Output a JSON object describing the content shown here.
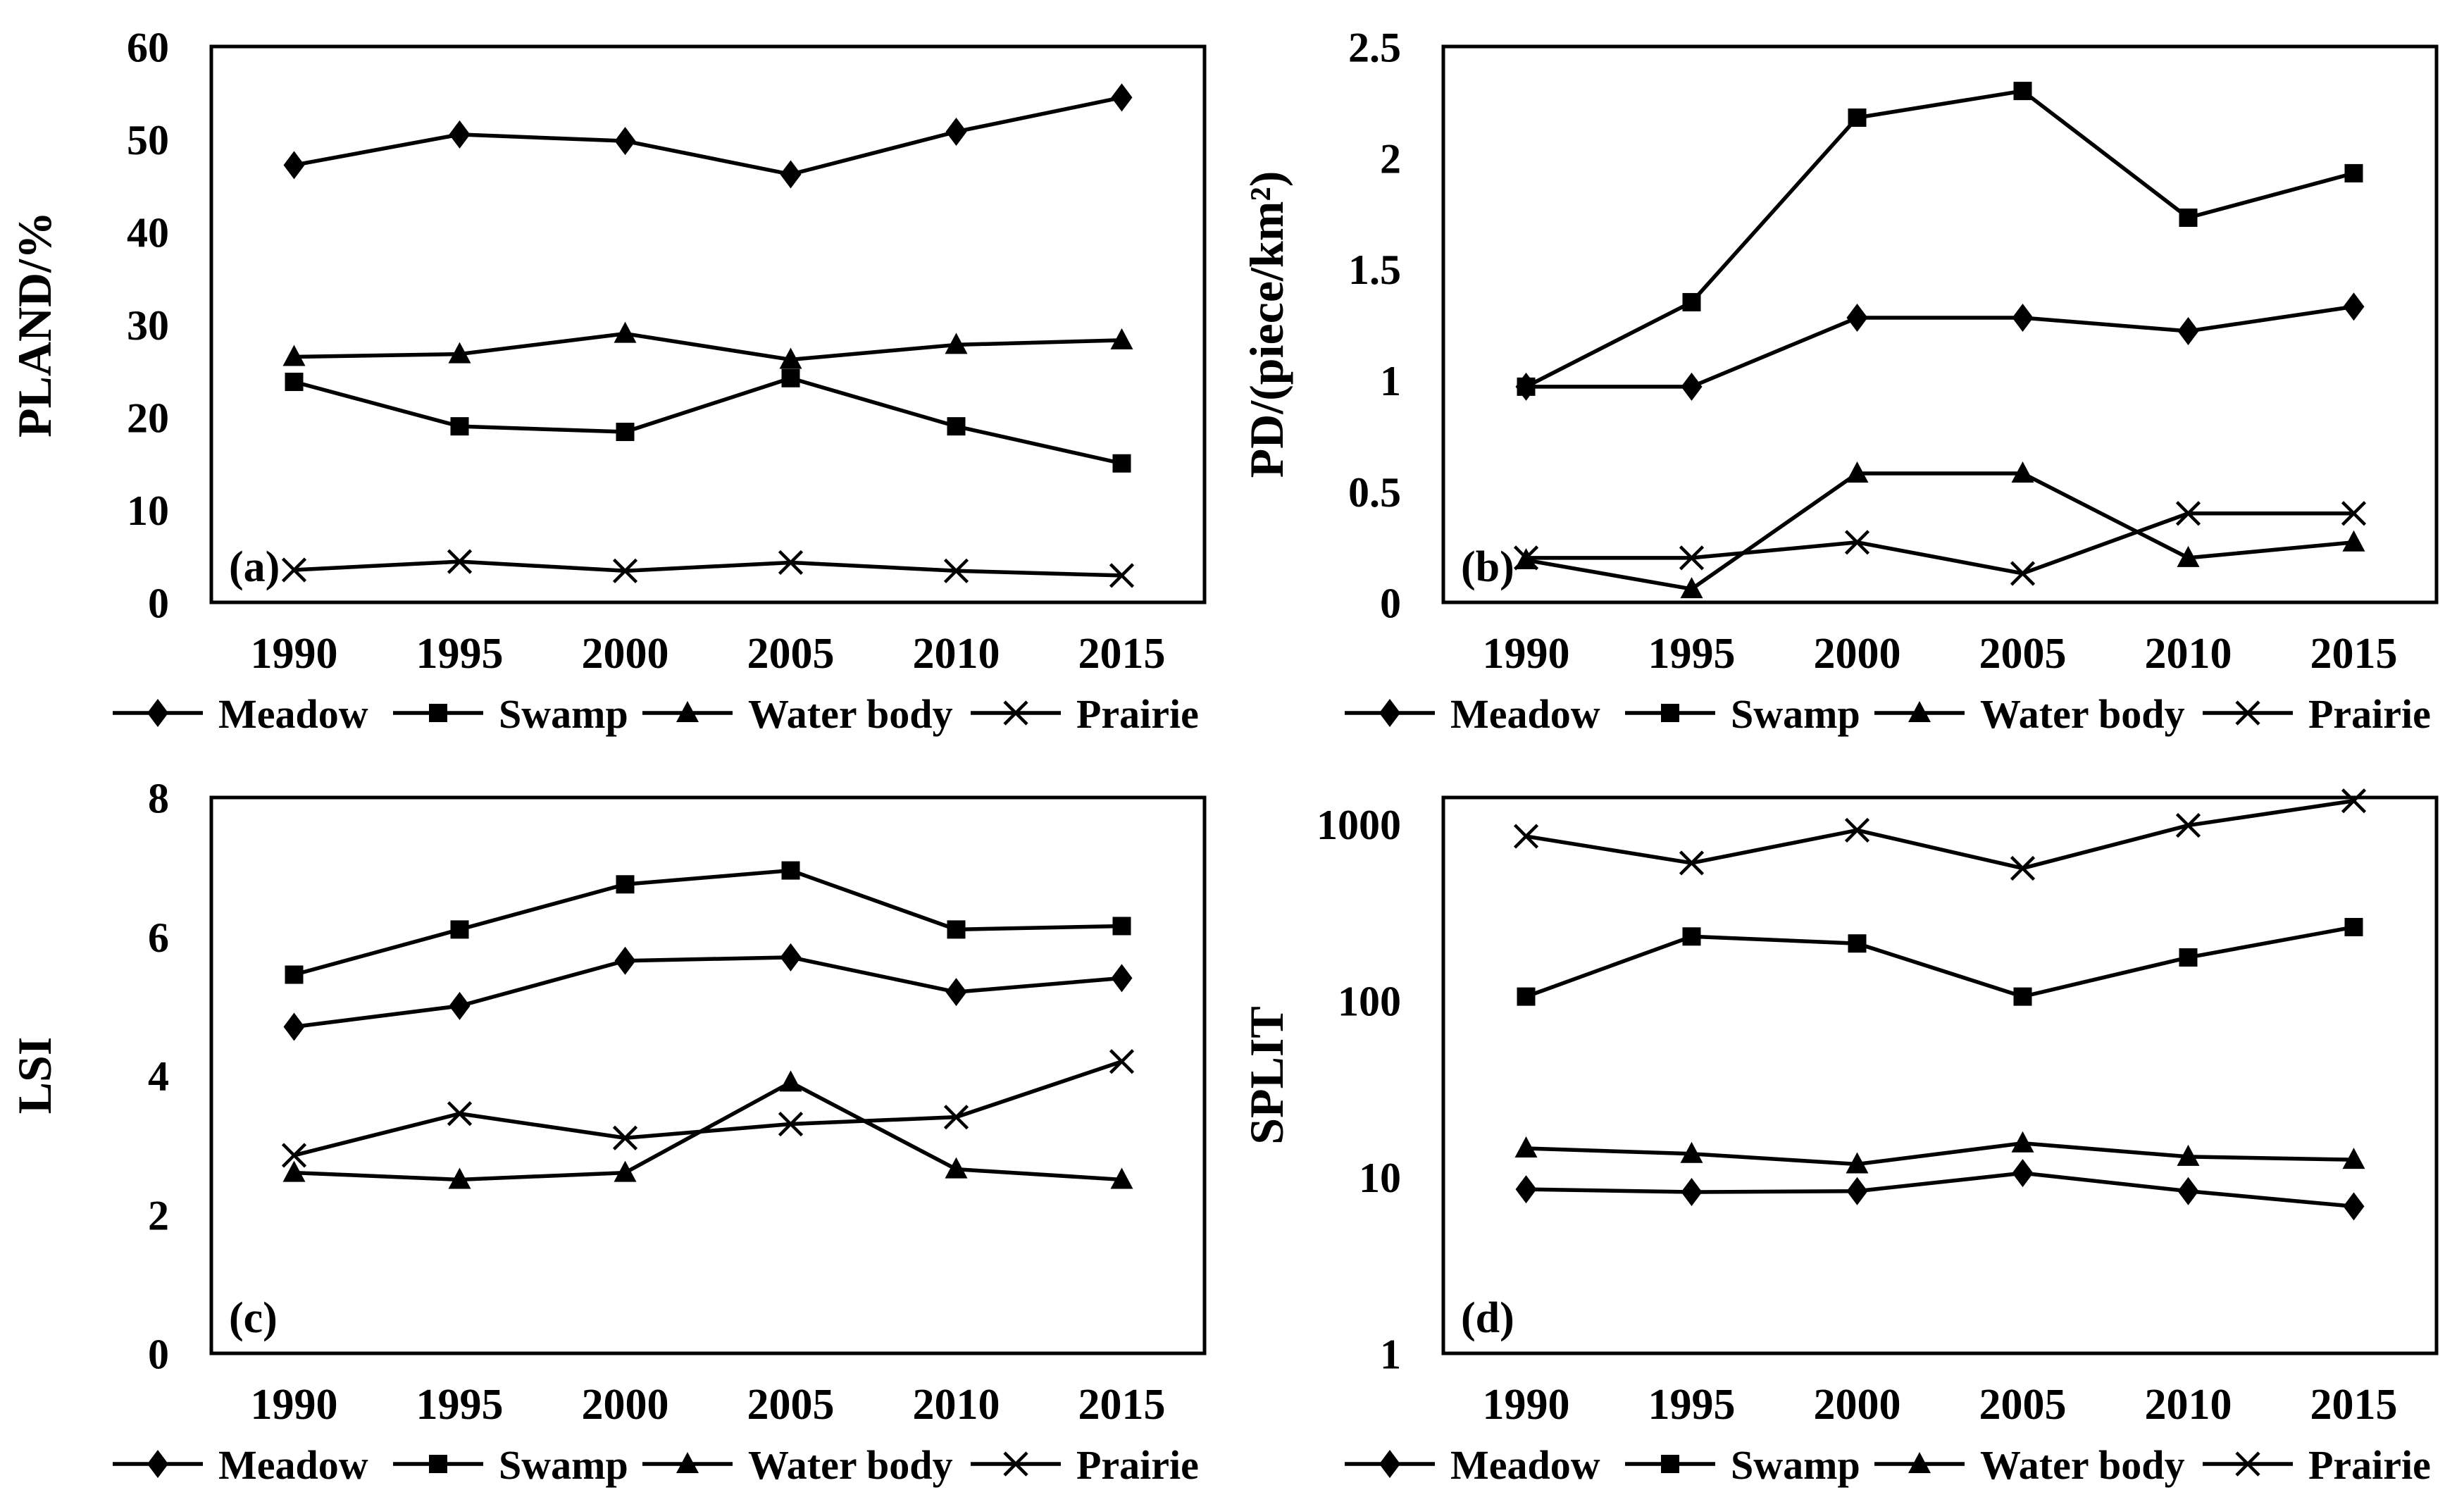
{
  "figure": {
    "background": "#ffffff",
    "line_color": "#000000",
    "text_color": "#000000",
    "legend_position": "bottom"
  },
  "chart_data": [
    {
      "id": "a",
      "type": "line",
      "panel_label": "(a)",
      "ylabel": "PLAND/%",
      "xlabel": "",
      "yscale": "linear",
      "ylim": [
        0,
        60
      ],
      "yticks": [
        0,
        10,
        20,
        30,
        40,
        50,
        60
      ],
      "ytick_labels": [
        "0",
        "10",
        "20",
        "30",
        "40",
        "50",
        "60"
      ],
      "x_labels": [
        "1990",
        "1995",
        "2000",
        "2005",
        "2010",
        "2015"
      ],
      "grid": false,
      "series": [
        {
          "name": "Meadow",
          "marker": "diamond",
          "values": [
            47.2,
            50.5,
            49.8,
            46.2,
            50.8,
            54.5
          ]
        },
        {
          "name": "Swamp",
          "marker": "square",
          "values": [
            23.8,
            19.0,
            18.4,
            24.2,
            19.0,
            15.0
          ]
        },
        {
          "name": "Water body",
          "marker": "triangle",
          "values": [
            26.5,
            26.8,
            29.0,
            26.2,
            27.8,
            28.3
          ]
        },
        {
          "name": "Prairie",
          "marker": "x",
          "values": [
            3.5,
            4.4,
            3.4,
            4.3,
            3.4,
            2.9
          ]
        }
      ]
    },
    {
      "id": "b",
      "type": "line",
      "panel_label": "(b)",
      "ylabel": "PD/(piece/km²)",
      "xlabel": "",
      "yscale": "linear",
      "ylim": [
        0,
        2.5
      ],
      "yticks": [
        0,
        0.5,
        1,
        1.5,
        2,
        2.5
      ],
      "ytick_labels": [
        "0",
        "0.5",
        "1",
        "1.5",
        "2",
        "2.5"
      ],
      "x_labels": [
        "1990",
        "1995",
        "2000",
        "2005",
        "2010",
        "2015"
      ],
      "grid": false,
      "series": [
        {
          "name": "Meadow",
          "marker": "diamond",
          "values": [
            0.97,
            0.97,
            1.28,
            1.28,
            1.22,
            1.33
          ]
        },
        {
          "name": "Swamp",
          "marker": "square",
          "values": [
            0.97,
            1.35,
            2.18,
            2.3,
            1.73,
            1.93
          ]
        },
        {
          "name": "Water body",
          "marker": "triangle",
          "values": [
            0.19,
            0.06,
            0.58,
            0.58,
            0.2,
            0.27
          ]
        },
        {
          "name": "Prairie",
          "marker": "x",
          "values": [
            0.2,
            0.2,
            0.27,
            0.13,
            0.4,
            0.4
          ]
        }
      ]
    },
    {
      "id": "c",
      "type": "line",
      "panel_label": "(c)",
      "ylabel": "LSI",
      "xlabel": "",
      "yscale": "linear",
      "ylim": [
        0,
        8
      ],
      "yticks": [
        0,
        2,
        4,
        6,
        8
      ],
      "ytick_labels": [
        "0",
        "2",
        "4",
        "6",
        "8"
      ],
      "x_labels": [
        "1990",
        "1995",
        "2000",
        "2005",
        "2010",
        "2015"
      ],
      "grid": false,
      "series": [
        {
          "name": "Meadow",
          "marker": "diamond",
          "values": [
            4.7,
            5.0,
            5.65,
            5.7,
            5.2,
            5.4
          ]
        },
        {
          "name": "Swamp",
          "marker": "square",
          "values": [
            5.45,
            6.1,
            6.75,
            6.95,
            6.1,
            6.15
          ]
        },
        {
          "name": "Water body",
          "marker": "triangle",
          "values": [
            2.6,
            2.5,
            2.6,
            3.9,
            2.65,
            2.5
          ]
        },
        {
          "name": "Prairie",
          "marker": "x",
          "values": [
            2.85,
            3.45,
            3.1,
            3.3,
            3.4,
            4.2
          ]
        }
      ]
    },
    {
      "id": "d",
      "type": "line",
      "panel_label": "(d)",
      "ylabel": "SPLIT",
      "xlabel": "",
      "yscale": "log",
      "ylim": [
        1,
        1410
      ],
      "yticks": [
        1,
        10,
        100,
        1000
      ],
      "ytick_labels": [
        "1",
        "10",
        "100",
        "1000"
      ],
      "x_labels": [
        "1990",
        "1995",
        "2000",
        "2005",
        "2010",
        "2015"
      ],
      "grid": false,
      "series": [
        {
          "name": "Meadow",
          "marker": "diamond",
          "values": [
            8.5,
            8.2,
            8.3,
            10.5,
            8.3,
            6.8
          ]
        },
        {
          "name": "Swamp",
          "marker": "square",
          "values": [
            105,
            230,
            210,
            105,
            175,
            260
          ]
        },
        {
          "name": "Water body",
          "marker": "triangle",
          "values": [
            14.5,
            13.5,
            11.8,
            15.5,
            13.0,
            12.5
          ]
        },
        {
          "name": "Prairie",
          "marker": "x",
          "values": [
            850,
            600,
            920,
            560,
            980,
            1350
          ]
        }
      ]
    }
  ]
}
